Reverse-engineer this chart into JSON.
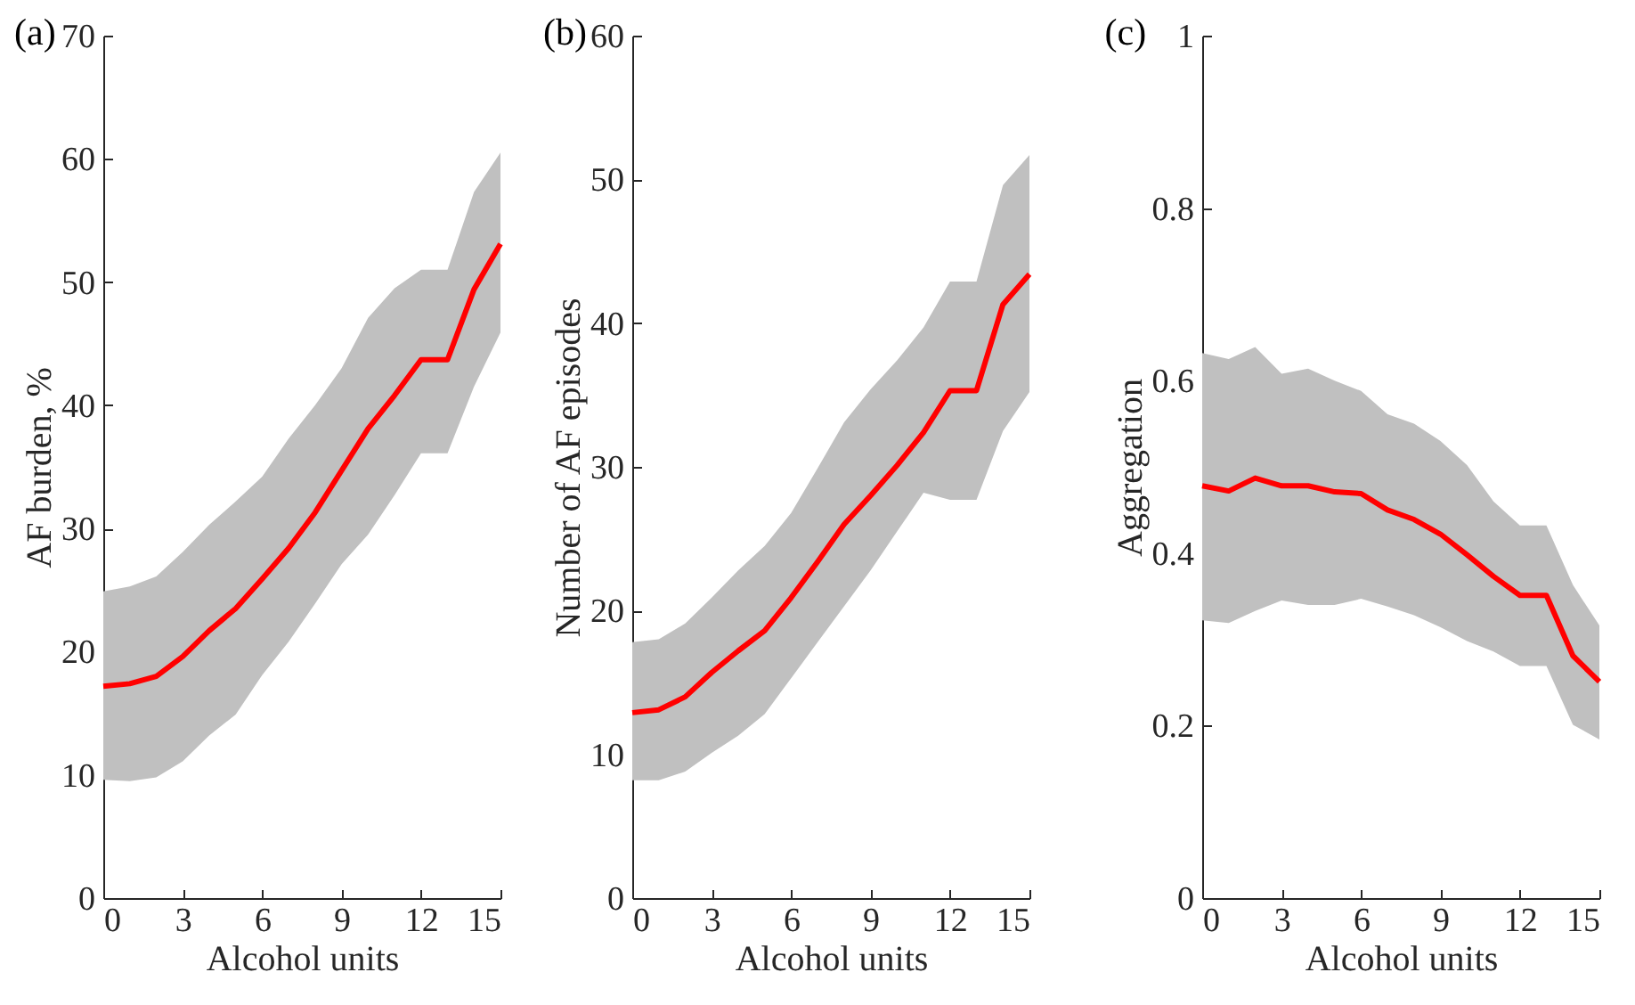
{
  "chart_data": [
    {
      "type": "line",
      "title": "(a)",
      "xlabel": "Alcohol units",
      "ylabel": "AF burden, %",
      "x": [
        0,
        1,
        2,
        3,
        4,
        5,
        6,
        7,
        8,
        9,
        10,
        11,
        12,
        13,
        14,
        15
      ],
      "xlim": [
        0,
        15
      ],
      "xticks": [
        0,
        3,
        6,
        9,
        12,
        15
      ],
      "ylim": [
        0,
        70
      ],
      "yticks": [
        0,
        10,
        20,
        30,
        40,
        50,
        60,
        70
      ],
      "grid": false,
      "series": [
        {
          "color": "#ff0000",
          "values": [
            17.2,
            17.4,
            18.0,
            19.6,
            21.7,
            23.5,
            25.9,
            28.4,
            31.3,
            34.7,
            38.1,
            40.8,
            43.7,
            43.7,
            49.4,
            53.1
          ],
          "upper": [
            24.9,
            25.3,
            26.1,
            28.1,
            30.3,
            32.2,
            34.2,
            37.3,
            40.0,
            43.0,
            47.1,
            49.5,
            51.0,
            51.0,
            57.3,
            60.5
          ],
          "lower": [
            9.6,
            9.5,
            9.8,
            11.1,
            13.2,
            14.9,
            18.1,
            20.8,
            23.9,
            27.1,
            29.5,
            32.7,
            36.1,
            36.1,
            41.5,
            45.9
          ]
        }
      ]
    },
    {
      "type": "line",
      "title": "(b)",
      "xlabel": "Alcohol units",
      "ylabel": "Number of AF episodes",
      "x": [
        0,
        1,
        2,
        3,
        4,
        5,
        6,
        7,
        8,
        9,
        10,
        11,
        12,
        13,
        14,
        15
      ],
      "xlim": [
        0,
        15
      ],
      "xticks": [
        0,
        3,
        6,
        9,
        12,
        15
      ],
      "ylim": [
        0,
        60
      ],
      "yticks": [
        0,
        10,
        20,
        30,
        40,
        50,
        60
      ],
      "grid": false,
      "series": [
        {
          "color": "#ff0000",
          "values": [
            12.9,
            13.1,
            14.0,
            15.7,
            17.2,
            18.6,
            20.9,
            23.4,
            26.0,
            28.0,
            30.1,
            32.4,
            35.3,
            35.3,
            41.3,
            43.4
          ],
          "upper": [
            17.8,
            18.0,
            19.1,
            20.9,
            22.8,
            24.5,
            26.8,
            29.9,
            33.1,
            35.4,
            37.4,
            39.7,
            42.9,
            42.9,
            49.6,
            51.7
          ],
          "lower": [
            8.2,
            8.2,
            8.8,
            10.1,
            11.3,
            12.8,
            15.3,
            17.8,
            20.3,
            22.8,
            25.5,
            28.2,
            27.7,
            27.7,
            32.5,
            35.2
          ]
        }
      ]
    },
    {
      "type": "line",
      "title": "(c)",
      "xlabel": "Alcohol units",
      "ylabel": "Aggregation",
      "x": [
        0,
        1,
        2,
        3,
        4,
        5,
        6,
        7,
        8,
        9,
        10,
        11,
        12,
        13,
        14,
        15
      ],
      "xlim": [
        0,
        15
      ],
      "xticks": [
        0,
        3,
        6,
        9,
        12,
        15
      ],
      "ylim": [
        0,
        1
      ],
      "yticks": [
        0,
        0.2,
        0.4,
        0.6,
        0.8,
        1
      ],
      "grid": false,
      "series": [
        {
          "color": "#ff0000",
          "values": [
            0.478,
            0.472,
            0.487,
            0.478,
            0.478,
            0.471,
            0.469,
            0.45,
            0.439,
            0.422,
            0.398,
            0.373,
            0.351,
            0.351,
            0.281,
            0.251
          ],
          "upper": [
            0.632,
            0.625,
            0.639,
            0.608,
            0.614,
            0.6,
            0.588,
            0.561,
            0.55,
            0.53,
            0.502,
            0.46,
            0.432,
            0.432,
            0.363,
            0.316
          ],
          "lower": [
            0.322,
            0.319,
            0.333,
            0.345,
            0.34,
            0.34,
            0.347,
            0.338,
            0.328,
            0.314,
            0.298,
            0.286,
            0.269,
            0.269,
            0.201,
            0.184
          ]
        }
      ]
    }
  ]
}
